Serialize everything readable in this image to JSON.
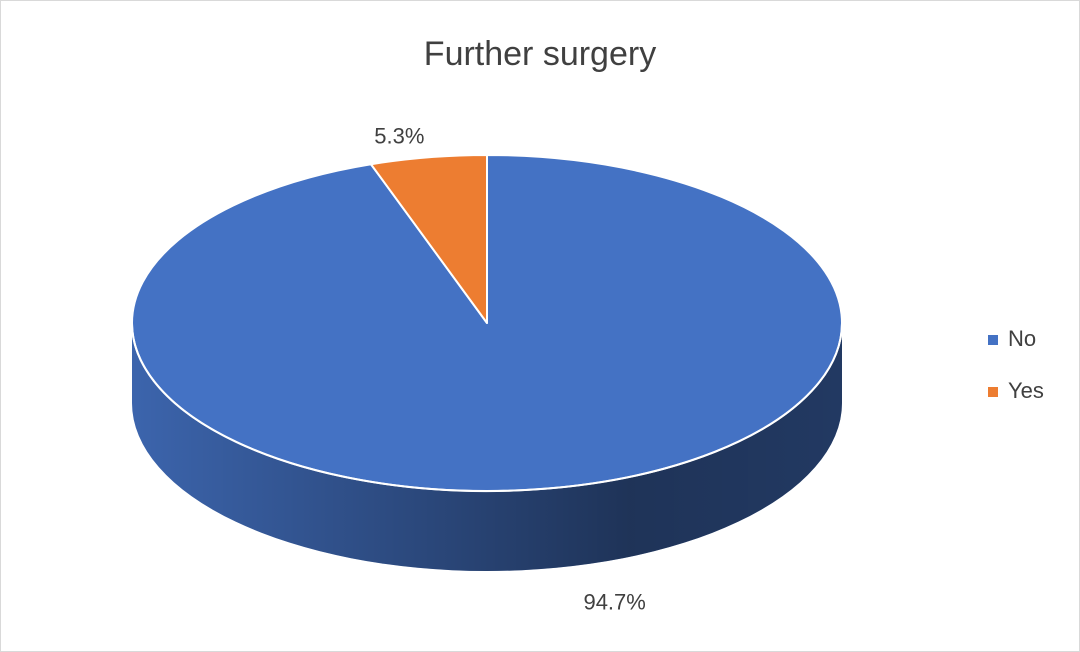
{
  "chart_data": {
    "type": "pie",
    "title": "Further surgery",
    "categories": [
      "No",
      "Yes"
    ],
    "values": [
      94.7,
      5.3
    ],
    "value_labels": [
      "94.7%",
      "5.3%"
    ],
    "colors": [
      "#4472c4",
      "#ed7d31"
    ],
    "legend": "right"
  }
}
